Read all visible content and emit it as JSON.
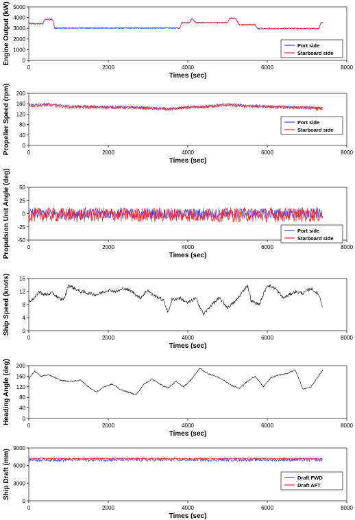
{
  "chart_data": [
    {
      "type": "line",
      "ylabel": "Engine Output (kW)",
      "xlabel": "Times (sec)",
      "xlim": [
        0,
        8000
      ],
      "ylim": [
        0,
        5000
      ],
      "xticks": [
        0,
        2000,
        4000,
        6000,
        8000
      ],
      "yticks": [
        0,
        1000,
        2000,
        3000,
        4000,
        5000
      ],
      "legend": {
        "position": "bottom-right",
        "entries": [
          "Port side",
          "Starboard side"
        ]
      },
      "series": [
        {
          "name": "Port side",
          "color": "#3344ff",
          "noise": 40,
          "x": [
            0,
            350,
            400,
            600,
            650,
            3800,
            3850,
            4050,
            4100,
            4200,
            4300,
            5000,
            5050,
            5200,
            5300,
            5700,
            5750,
            7300,
            7350,
            7400
          ],
          "y": [
            3400,
            3400,
            3800,
            3800,
            3000,
            3000,
            3500,
            3500,
            3900,
            3500,
            3500,
            3500,
            3900,
            3900,
            3300,
            3300,
            2950,
            2950,
            3500,
            3500
          ]
        },
        {
          "name": "Starboard side",
          "color": "#ff2222",
          "noise": 40,
          "x": [
            0,
            350,
            400,
            600,
            650,
            3800,
            3850,
            4050,
            4100,
            4200,
            4300,
            5000,
            5050,
            5200,
            5300,
            5700,
            5750,
            7300,
            7350,
            7400
          ],
          "y": [
            3450,
            3450,
            3850,
            3850,
            3050,
            3050,
            3550,
            3550,
            3950,
            3550,
            3550,
            3550,
            3950,
            3950,
            3350,
            3350,
            3000,
            3000,
            3550,
            3550
          ]
        }
      ]
    },
    {
      "type": "line",
      "ylabel": "Propeller Speed (rpm)",
      "xlabel": "Times (sec)",
      "xlim": [
        0,
        8000
      ],
      "ylim": [
        0,
        200
      ],
      "xticks": [
        0,
        2000,
        4000,
        6000,
        8000
      ],
      "yticks": [
        0,
        40,
        80,
        120,
        160,
        200
      ],
      "legend": {
        "position": "bottom-right",
        "entries": [
          "Port side",
          "Starboard side"
        ]
      },
      "series": [
        {
          "name": "Port side",
          "color": "#3344ff",
          "noise": 5,
          "x": [
            0,
            500,
            1000,
            2000,
            3000,
            3500,
            4000,
            4500,
            5000,
            5500,
            6000,
            6500,
            7000,
            7400
          ],
          "y": [
            155,
            158,
            150,
            148,
            145,
            140,
            147,
            150,
            158,
            152,
            150,
            148,
            146,
            142
          ]
        },
        {
          "name": "Starboard side",
          "color": "#ff2222",
          "noise": 6,
          "x": [
            0,
            500,
            1000,
            2000,
            3000,
            3500,
            4000,
            4500,
            5000,
            5500,
            6000,
            6500,
            7000,
            7400
          ],
          "y": [
            152,
            155,
            147,
            146,
            143,
            138,
            145,
            148,
            155,
            150,
            148,
            146,
            144,
            140
          ]
        }
      ]
    },
    {
      "type": "line",
      "ylabel": "Propulsion Unit Angle (deg)",
      "xlabel": "Times (sec)",
      "xlim": [
        0,
        8000
      ],
      "ylim": [
        -50,
        50
      ],
      "xticks": [
        0,
        2000,
        4000,
        6000,
        8000
      ],
      "yticks": [
        -50,
        -25,
        0,
        25,
        50
      ],
      "legend": {
        "position": "bottom-right",
        "entries": [
          "Port side",
          "Starboard side"
        ]
      },
      "series": [
        {
          "name": "Port side",
          "color": "#3344ff",
          "noise": 10,
          "x": [
            0,
            7400
          ],
          "y": [
            0,
            0
          ]
        },
        {
          "name": "Starboard side",
          "color": "#ff2222",
          "noise": 14,
          "x": [
            0,
            7400
          ],
          "y": [
            -2,
            -2
          ]
        }
      ]
    },
    {
      "type": "line",
      "ylabel": "Ship Speed (knots)",
      "xlabel": "Times (sec)",
      "xlim": [
        0,
        8000
      ],
      "ylim": [
        0,
        16
      ],
      "xticks": [
        0,
        2000,
        4000,
        6000,
        8000
      ],
      "yticks": [
        0,
        4,
        8,
        12,
        16
      ],
      "series": [
        {
          "color": "#222222",
          "noise": 0.5,
          "x": [
            0,
            150,
            250,
            400,
            600,
            800,
            900,
            1000,
            1300,
            1500,
            1700,
            2000,
            2200,
            2400,
            2600,
            2800,
            3000,
            3100,
            3300,
            3400,
            3500,
            3600,
            3800,
            4000,
            4200,
            4400,
            4600,
            4800,
            5000,
            5200,
            5500,
            5600,
            5800,
            6000,
            6200,
            6400,
            6700,
            6900,
            7100,
            7300,
            7400
          ],
          "y": [
            9,
            10,
            12,
            11,
            11.5,
            9.5,
            10,
            14,
            12,
            11.5,
            11,
            12.5,
            12,
            13,
            12,
            10,
            12.5,
            11,
            10,
            9,
            5.5,
            9.5,
            10,
            8.5,
            10,
            5,
            8,
            10,
            7,
            9,
            14,
            9,
            8,
            14,
            13,
            10,
            12,
            11.5,
            13,
            11,
            7
          ]
        }
      ]
    },
    {
      "type": "line",
      "ylabel": "Heading Angle (deg)",
      "xlabel": "Times (sec)",
      "xlim": [
        0,
        8000
      ],
      "ylim": [
        0,
        200
      ],
      "xticks": [
        0,
        2000,
        4000,
        6000,
        8000
      ],
      "yticks": [
        0,
        40,
        80,
        120,
        160,
        200
      ],
      "series": [
        {
          "color": "#222222",
          "noise": 2,
          "x": [
            0,
            150,
            300,
            500,
            800,
            1000,
            1300,
            1500,
            1700,
            1900,
            2100,
            2300,
            2500,
            2700,
            2900,
            3100,
            3300,
            3500,
            3700,
            3900,
            4100,
            4300,
            4500,
            4700,
            4900,
            5100,
            5300,
            5500,
            5700,
            5900,
            6100,
            6300,
            6500,
            6700,
            6900,
            7100,
            7400
          ],
          "y": [
            150,
            180,
            160,
            165,
            145,
            140,
            145,
            120,
            100,
            120,
            130,
            110,
            100,
            90,
            130,
            150,
            130,
            115,
            140,
            120,
            150,
            190,
            170,
            160,
            145,
            125,
            115,
            140,
            160,
            120,
            155,
            165,
            170,
            185,
            110,
            120,
            185
          ]
        }
      ]
    },
    {
      "type": "line",
      "ylabel": "Ship Draft (mm)",
      "xlabel": "Times (sec)",
      "xlim": [
        0,
        8000
      ],
      "ylim": [
        0,
        9000
      ],
      "xticks": [
        0,
        2000,
        4000,
        6000,
        8000
      ],
      "yticks": [
        0,
        3000,
        6000,
        9000
      ],
      "legend": {
        "position": "bottom-right",
        "entries": [
          "Draft FWD",
          "Draft AFT"
        ]
      },
      "series": [
        {
          "name": "Draft FWD",
          "color": "#3344ff",
          "noise": 300,
          "x": [
            0,
            7400
          ],
          "y": [
            7000,
            7000
          ]
        },
        {
          "name": "Draft AFT",
          "color": "#ff2222",
          "noise": 120,
          "x": [
            0,
            7400
          ],
          "y": [
            7200,
            7200
          ]
        }
      ]
    }
  ]
}
